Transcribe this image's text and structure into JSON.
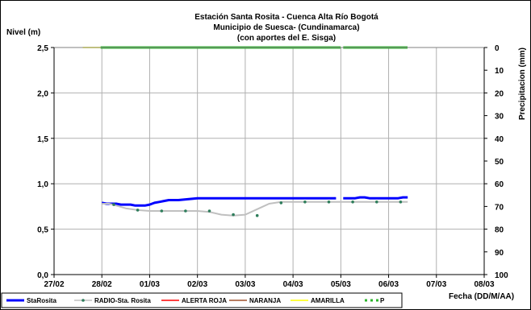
{
  "chart_data": {
    "type": "line",
    "title_lines": [
      "Estación Santa Rosita - Cuenca Alta Río Bogotá",
      "Municipio de Suesca- (Cundinamarca)",
      "(con aportes del  E. Sisga)"
    ],
    "ylabel": "Nivel (m)",
    "y2label": "Precipitacion (mm)",
    "xlabel": "Fecha (DD/M/AA)",
    "x_ticks": [
      "27/02",
      "28/02",
      "01/03",
      "02/03",
      "03/03",
      "04/03",
      "05/03",
      "06/03",
      "07/03",
      "08/03"
    ],
    "ylim": [
      0,
      2.5
    ],
    "y_ticks": [
      "0,0",
      "0,5",
      "1,0",
      "1,5",
      "2,0",
      "2,5"
    ],
    "y2lim": [
      0,
      100
    ],
    "y2_reversed": true,
    "y2_ticks": [
      "0",
      "10",
      "20",
      "30",
      "40",
      "50",
      "60",
      "70",
      "80",
      "90",
      "100"
    ],
    "grid": true,
    "legend_position": "bottom",
    "series": [
      {
        "name": "StaRosita",
        "color": "#0000ff",
        "x": [
          1.0,
          1.1,
          1.2,
          1.3,
          1.4,
          1.5,
          1.6,
          1.7,
          1.8,
          1.9,
          2.0,
          2.1,
          2.2,
          2.3,
          2.4,
          2.6,
          2.8,
          3.0,
          3.5,
          4.0,
          4.5,
          5.0,
          5.5,
          5.9,
          null,
          6.05,
          6.3,
          6.4,
          6.5,
          6.6,
          7.0,
          7.2,
          7.3,
          7.4
        ],
        "values": [
          0.79,
          0.78,
          0.78,
          0.78,
          0.77,
          0.77,
          0.77,
          0.76,
          0.76,
          0.76,
          0.77,
          0.79,
          0.8,
          0.81,
          0.82,
          0.82,
          0.83,
          0.84,
          0.84,
          0.84,
          0.84,
          0.84,
          0.84,
          0.84,
          null,
          0.84,
          0.84,
          0.85,
          0.85,
          0.84,
          0.84,
          0.84,
          0.85,
          0.85
        ]
      },
      {
        "name": "RADIO-Sta. Rosita",
        "color": "#c0c0c0",
        "marker_color": "#2e7d5b",
        "x": [
          1.0,
          1.15,
          1.3,
          1.5,
          1.75,
          2.0,
          2.5,
          3.0,
          3.25,
          3.5,
          3.75,
          4.0,
          4.25,
          4.5,
          4.75,
          5.0,
          5.5,
          6.0,
          6.5,
          7.0,
          7.4
        ],
        "values": [
          0.78,
          0.78,
          0.76,
          0.73,
          0.71,
          0.7,
          0.7,
          0.7,
          0.69,
          0.66,
          0.65,
          0.66,
          0.72,
          0.78,
          0.8,
          0.8,
          0.8,
          0.8,
          0.8,
          0.8,
          0.8
        ],
        "marker_x": [
          1.25,
          1.75,
          2.25,
          2.75,
          3.25,
          3.75,
          4.25,
          4.75,
          5.25,
          5.75,
          6.25,
          6.75,
          7.25
        ],
        "marker_values": [
          0.77,
          0.71,
          0.7,
          0.7,
          0.7,
          0.66,
          0.65,
          0.79,
          0.8,
          0.8,
          0.8,
          0.8,
          0.8
        ]
      },
      {
        "name": "ALERTA ROJA",
        "color": "#ff0000",
        "values": []
      },
      {
        "name": "NARANJA",
        "color": "#a0522d",
        "values": []
      },
      {
        "name": "AMARILLA",
        "color": "#ffff00",
        "x": [
          0.6,
          1.0
        ],
        "values": [
          2.5,
          2.5
        ]
      },
      {
        "name": "P",
        "color": "#2db52d",
        "marker": "square",
        "axis": "y2",
        "x_start": 1.0,
        "x_end": 7.4,
        "gap_start": 5.98,
        "gap_end": 6.05,
        "value": 0
      }
    ]
  }
}
